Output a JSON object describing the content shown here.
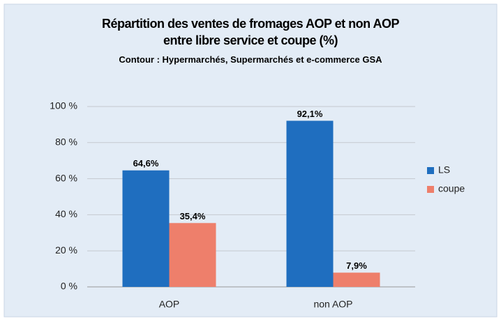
{
  "chart_data": {
    "type": "bar",
    "title": "Répartition des ventes de fromages AOP et non AOP entre libre service et coupe (%)",
    "subtitle": "Contour : Hypermarchés, Supermarchés et e-commerce GSA",
    "categories": [
      "AOP",
      "non AOP"
    ],
    "series": [
      {
        "name": "LS",
        "color": "#1f6ebf",
        "values": [
          64.6,
          92.1
        ],
        "value_labels": [
          "64,6%",
          "92,1%"
        ]
      },
      {
        "name": "coupe",
        "color": "#ee7f6b",
        "values": [
          35.4,
          7.9
        ],
        "value_labels": [
          "35,4%",
          "7,9%"
        ]
      }
    ],
    "ylim": [
      0,
      100
    ],
    "yticks": [
      {
        "value": 0,
        "label": "0 %"
      },
      {
        "value": 20,
        "label": "20 %"
      },
      {
        "value": 40,
        "label": "40 %"
      },
      {
        "value": 60,
        "label": "60 %"
      },
      {
        "value": 80,
        "label": "80 %"
      },
      {
        "value": 100,
        "label": "100 %"
      }
    ],
    "grid": true,
    "legend": "right"
  }
}
